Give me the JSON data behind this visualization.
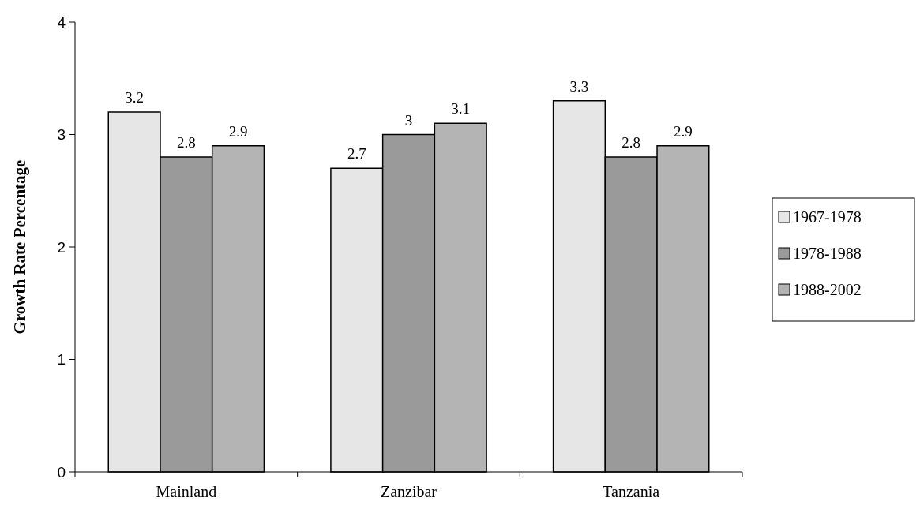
{
  "chart_data": {
    "type": "bar",
    "ylabel": "Growth Rate Percentage",
    "categories": [
      "Mainland",
      "Zanzibar",
      "Tanzania"
    ],
    "series": [
      {
        "name": "1967-1978",
        "color": "#e6e6e6",
        "values": [
          3.2,
          2.7,
          3.3
        ]
      },
      {
        "name": "1978-1988",
        "color": "#9a9a9a",
        "values": [
          2.8,
          3,
          2.8
        ]
      },
      {
        "name": "1988-2002",
        "color": "#b4b4b4",
        "values": [
          2.9,
          3.1,
          2.9
        ]
      }
    ],
    "ylim": [
      0,
      4
    ],
    "yticks": [
      0,
      1,
      2,
      3,
      4
    ],
    "data_labels": true,
    "legend": "right",
    "grid": false
  }
}
